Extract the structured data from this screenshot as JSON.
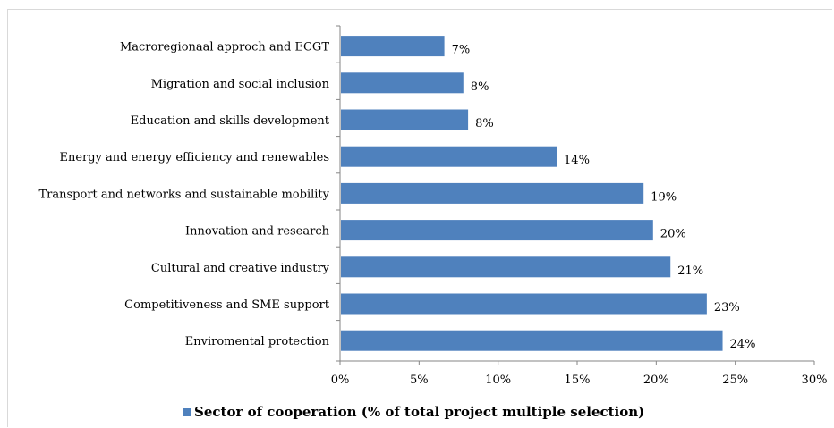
{
  "chart_data": {
    "type": "bar",
    "orientation": "horizontal",
    "categories": [
      "Macroregionaal approch and ECGT",
      "Migration and social inclusion",
      "Education and skills development",
      "Energy and energy efficiency and renewables",
      "Transport and networks and sustainable mobility",
      "Innovation and research",
      "Cultural and creative industry",
      "Competitiveness and SME support",
      "Enviromental protection"
    ],
    "values": [
      6.6,
      7.8,
      8.1,
      13.7,
      19.2,
      19.8,
      20.9,
      23.2,
      24.2
    ],
    "value_labels": [
      "7%",
      "8%",
      "8%",
      "14%",
      "19%",
      "20%",
      "21%",
      "23%",
      "24%"
    ],
    "series": [
      {
        "name": "Sector of cooperation (% of total project multiple selection)",
        "color": "#4f81bd"
      }
    ],
    "xlim": [
      0,
      30
    ],
    "x_ticks": [
      "0%",
      "5%",
      "10%",
      "15%",
      "20%",
      "25%",
      "30%"
    ],
    "grid": false,
    "legend_position": "bottom"
  },
  "legend": {
    "label": "Sector of cooperation (% of total project multiple selection)"
  }
}
